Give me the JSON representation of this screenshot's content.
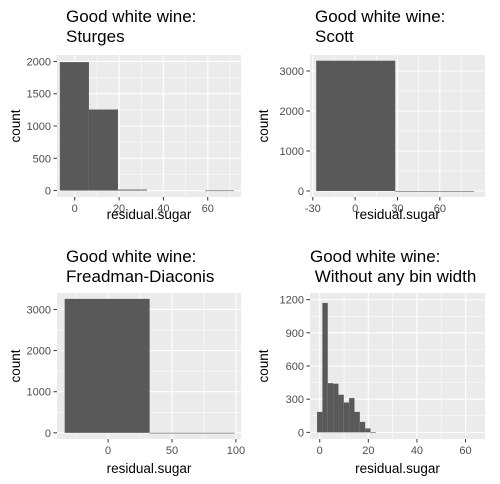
{
  "chart_data": [
    {
      "type": "bar",
      "title_lines": [
        "Good white wine:",
        "Sturges"
      ],
      "xlabel": "residual.sugar",
      "ylabel": "count",
      "xlim": [
        -8,
        75
      ],
      "ylim": [
        -100,
        2100
      ],
      "x_ticks": [
        0,
        20,
        40,
        60
      ],
      "y_ticks": [
        0,
        500,
        1000,
        1500,
        2000
      ],
      "bars": [
        {
          "x0": -6.7,
          "x1": 6.4,
          "count": 1990
        },
        {
          "x0": 6.4,
          "x1": 19.5,
          "count": 1255
        },
        {
          "x0": 19.5,
          "x1": 32.6,
          "count": 15
        },
        {
          "x0": 32.6,
          "x1": 45.7,
          "count": 0
        },
        {
          "x0": 45.7,
          "x1": 58.8,
          "count": 0
        },
        {
          "x0": 58.8,
          "x1": 71.9,
          "count": 1
        }
      ],
      "bar_color": "#595959"
    },
    {
      "type": "bar",
      "title_lines": [
        "Good white wine:",
        "Scott"
      ],
      "xlabel": "residual.sugar",
      "ylabel": "count",
      "xlim": [
        -32,
        92
      ],
      "ylim": [
        -150,
        3400
      ],
      "x_ticks": [
        -30,
        0,
        30,
        60
      ],
      "y_ticks": [
        0,
        1000,
        2000,
        3000
      ],
      "bars": [
        {
          "x0": -27.6,
          "x1": 28.4,
          "count": 3257
        },
        {
          "x0": 28.4,
          "x1": 84.4,
          "count": 1
        }
      ],
      "bar_color": "#595959"
    },
    {
      "type": "bar",
      "title_lines": [
        "Good white wine:",
        "Freadman-Diaconis"
      ],
      "xlabel": "residual.sugar",
      "ylabel": "count",
      "xlim": [
        -40,
        104
      ],
      "ylim": [
        -150,
        3400
      ],
      "x_ticks": [
        0,
        50,
        100
      ],
      "y_ticks": [
        0,
        1000,
        2000,
        3000
      ],
      "bars": [
        {
          "x0": -34,
          "x1": 32.5,
          "count": 3257
        },
        {
          "x0": 32.5,
          "x1": 99,
          "count": 1
        }
      ],
      "bar_color": "#595959"
    },
    {
      "type": "bar",
      "title_lines": [
        "Good white wine:",
        " Without any bin width"
      ],
      "xlabel": "residual.sugar",
      "ylabel": "count",
      "xlim": [
        -4,
        68
      ],
      "ylim": [
        -60,
        1260
      ],
      "x_ticks": [
        0,
        20,
        40,
        60
      ],
      "y_ticks": [
        0,
        300,
        600,
        900,
        1200
      ],
      "bars": [
        {
          "x0": -1.1,
          "x1": 1.1,
          "count": 185
        },
        {
          "x0": 1.1,
          "x1": 3.3,
          "count": 1170
        },
        {
          "x0": 3.3,
          "x1": 5.5,
          "count": 445
        },
        {
          "x0": 5.5,
          "x1": 7.7,
          "count": 440
        },
        {
          "x0": 7.7,
          "x1": 9.9,
          "count": 340
        },
        {
          "x0": 9.9,
          "x1": 12.1,
          "count": 270
        },
        {
          "x0": 12.1,
          "x1": 14.3,
          "count": 310
        },
        {
          "x0": 14.3,
          "x1": 16.5,
          "count": 185
        },
        {
          "x0": 16.5,
          "x1": 18.7,
          "count": 95
        },
        {
          "x0": 18.7,
          "x1": 20.9,
          "count": 35
        },
        {
          "x0": 20.9,
          "x1": 23.1,
          "count": 3
        }
      ],
      "bar_color": "#595959"
    }
  ]
}
